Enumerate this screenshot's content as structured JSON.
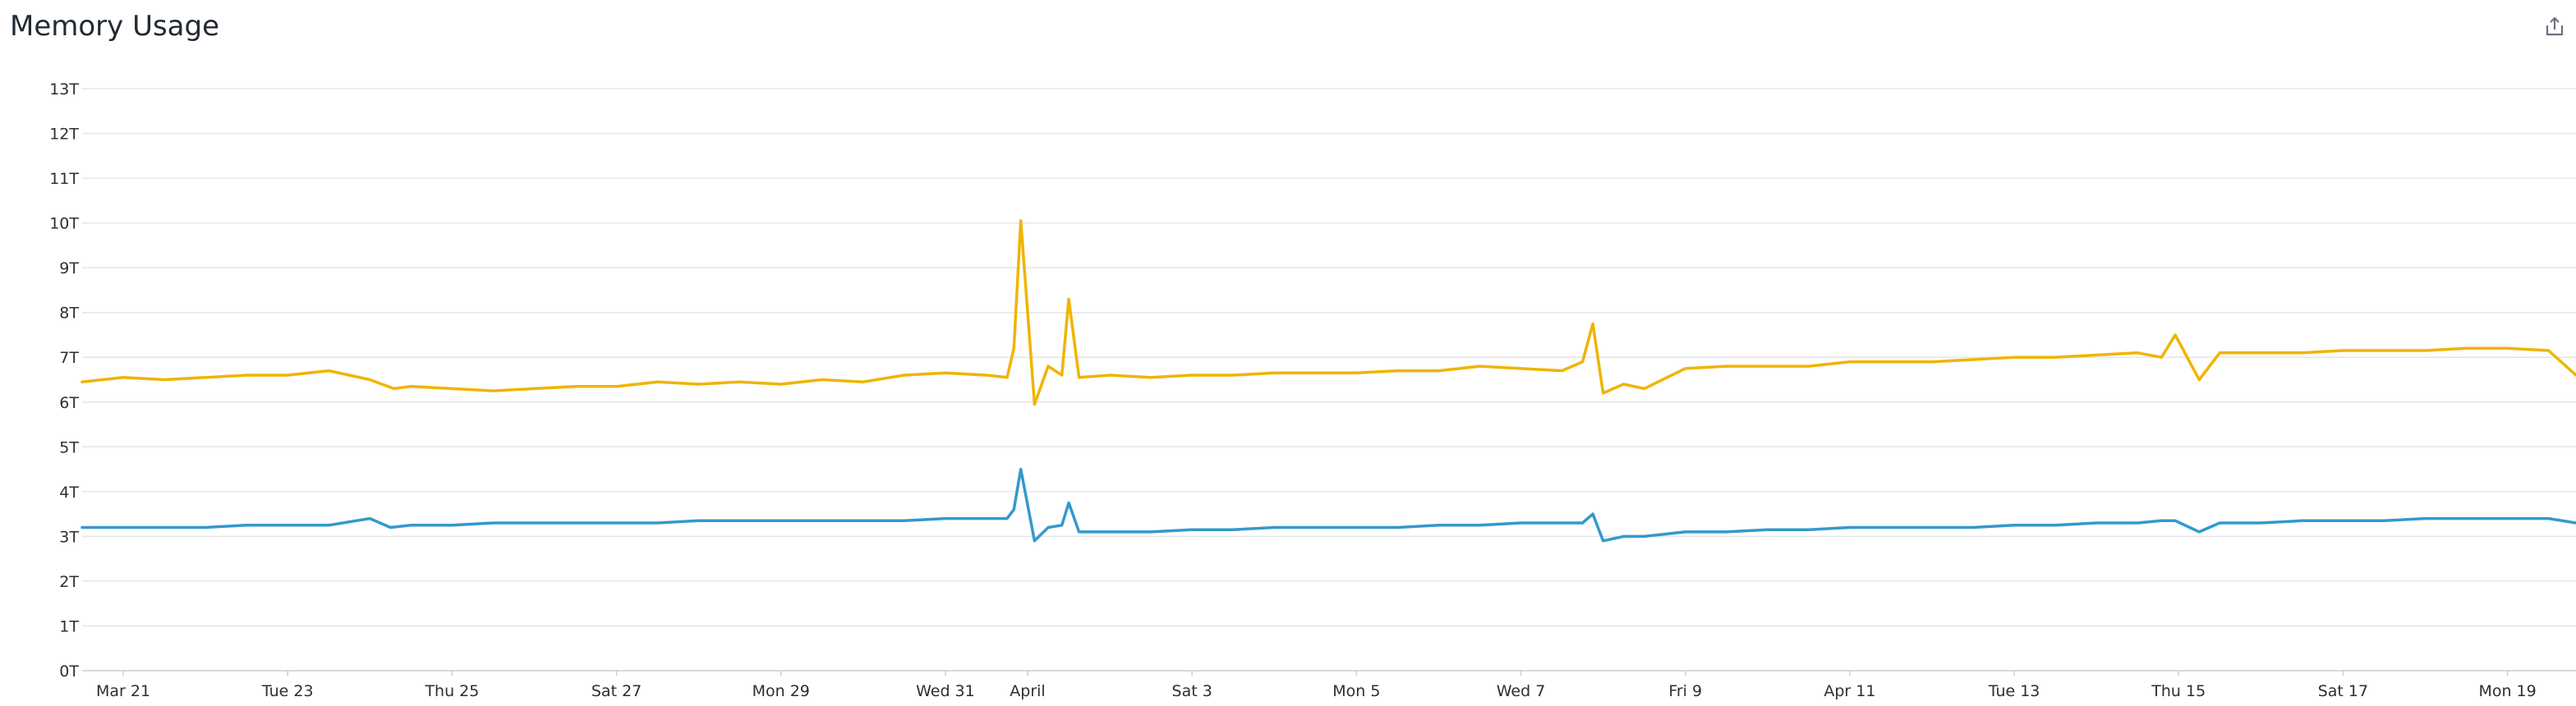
{
  "title": "Memory Usage",
  "icons": {
    "share": "share-icon"
  },
  "colors": {
    "series_top": "#f0b400",
    "series_bottom": "#3399cc",
    "grid": "#e4e6ea",
    "axis": "#c9cdd3"
  },
  "chart_data": {
    "type": "line",
    "title": "Memory Usage",
    "xlabel": "",
    "ylabel": "",
    "grid": true,
    "legend": "none",
    "unit": "T",
    "ylim": [
      0,
      13
    ],
    "yticks": [
      "0T",
      "1T",
      "2T",
      "3T",
      "4T",
      "5T",
      "6T",
      "7T",
      "8T",
      "9T",
      "10T",
      "11T",
      "12T",
      "13T"
    ],
    "xlim": [
      "2021-03-20T12:00",
      "2021-04-19T20:00"
    ],
    "xticks": [
      {
        "date": "2021-03-21",
        "label": "Mar 21"
      },
      {
        "date": "2021-03-23",
        "label": "Tue 23"
      },
      {
        "date": "2021-03-25",
        "label": "Thu 25"
      },
      {
        "date": "2021-03-27",
        "label": "Sat 27"
      },
      {
        "date": "2021-03-29",
        "label": "Mon 29"
      },
      {
        "date": "2021-03-31",
        "label": "Wed 31"
      },
      {
        "date": "2021-04-01",
        "label": "April"
      },
      {
        "date": "2021-04-03",
        "label": "Sat 3"
      },
      {
        "date": "2021-04-05",
        "label": "Mon 5"
      },
      {
        "date": "2021-04-07",
        "label": "Wed 7"
      },
      {
        "date": "2021-04-09",
        "label": "Fri 9"
      },
      {
        "date": "2021-04-11",
        "label": "Apr 11"
      },
      {
        "date": "2021-04-13",
        "label": "Tue 13"
      },
      {
        "date": "2021-04-15",
        "label": "Thu 15"
      },
      {
        "date": "2021-04-17",
        "label": "Sat 17"
      },
      {
        "date": "2021-04-19",
        "label": "Mon 19"
      }
    ],
    "series": [
      {
        "x": [
          "2021-03-20T12:00",
          "2021-03-21T00:00",
          "2021-03-21T12:00",
          "2021-03-22T00:00",
          "2021-03-22T12:00",
          "2021-03-23T00:00",
          "2021-03-23T12:00",
          "2021-03-24T00:00",
          "2021-03-24T07:00",
          "2021-03-24T12:00",
          "2021-03-25T00:00",
          "2021-03-25T12:00",
          "2021-03-26T00:00",
          "2021-03-26T12:00",
          "2021-03-27T00:00",
          "2021-03-27T12:00",
          "2021-03-28T00:00",
          "2021-03-28T12:00",
          "2021-03-29T00:00",
          "2021-03-29T12:00",
          "2021-03-30T00:00",
          "2021-03-30T12:00",
          "2021-03-31T00:00",
          "2021-03-31T12:00",
          "2021-03-31T18:00",
          "2021-03-31T20:00",
          "2021-03-31T22:00",
          "2021-04-01T02:00",
          "2021-04-01T06:00",
          "2021-04-01T10:00",
          "2021-04-01T12:00",
          "2021-04-01T15:00",
          "2021-04-02T00:00",
          "2021-04-02T12:00",
          "2021-04-03T00:00",
          "2021-04-03T12:00",
          "2021-04-04T00:00",
          "2021-04-04T12:00",
          "2021-04-05T00:00",
          "2021-04-05T12:00",
          "2021-04-06T00:00",
          "2021-04-06T12:00",
          "2021-04-07T00:00",
          "2021-04-07T12:00",
          "2021-04-07T18:00",
          "2021-04-07T21:00",
          "2021-04-08T00:00",
          "2021-04-08T06:00",
          "2021-04-08T12:00",
          "2021-04-09T00:00",
          "2021-04-09T12:00",
          "2021-04-10T00:00",
          "2021-04-10T12:00",
          "2021-04-11T00:00",
          "2021-04-11T12:00",
          "2021-04-12T00:00",
          "2021-04-12T12:00",
          "2021-04-13T00:00",
          "2021-04-13T12:00",
          "2021-04-14T00:00",
          "2021-04-14T12:00",
          "2021-04-14T19:00",
          "2021-04-14T23:00",
          "2021-04-15T06:00",
          "2021-04-15T12:00",
          "2021-04-16T00:00",
          "2021-04-16T12:00",
          "2021-04-17T00:00",
          "2021-04-17T12:00",
          "2021-04-18T00:00",
          "2021-04-18T12:00",
          "2021-04-19T00:00",
          "2021-04-19T12:00",
          "2021-04-19T20:00"
        ],
        "y": [
          6.45,
          6.55,
          6.5,
          6.55,
          6.6,
          6.6,
          6.7,
          6.5,
          6.3,
          6.35,
          6.3,
          6.25,
          6.3,
          6.35,
          6.35,
          6.45,
          6.4,
          6.45,
          6.4,
          6.5,
          6.45,
          6.6,
          6.65,
          6.6,
          6.55,
          7.2,
          10.05,
          5.95,
          6.8,
          6.6,
          8.3,
          6.55,
          6.6,
          6.55,
          6.6,
          6.6,
          6.65,
          6.65,
          6.65,
          6.7,
          6.7,
          6.8,
          6.75,
          6.7,
          6.9,
          7.75,
          6.2,
          6.4,
          6.3,
          6.75,
          6.8,
          6.8,
          6.8,
          6.9,
          6.9,
          6.9,
          6.95,
          7.0,
          7.0,
          7.05,
          7.1,
          7.0,
          7.5,
          6.5,
          7.1,
          7.1,
          7.1,
          7.15,
          7.15,
          7.15,
          7.2,
          7.2,
          7.15,
          6.6
        ]
      },
      {
        "x": [
          "2021-03-20T12:00",
          "2021-03-21T00:00",
          "2021-03-21T12:00",
          "2021-03-22T00:00",
          "2021-03-22T12:00",
          "2021-03-23T00:00",
          "2021-03-23T12:00",
          "2021-03-24T00:00",
          "2021-03-24T06:00",
          "2021-03-24T12:00",
          "2021-03-25T00:00",
          "2021-03-25T12:00",
          "2021-03-26T00:00",
          "2021-03-26T12:00",
          "2021-03-27T00:00",
          "2021-03-27T12:00",
          "2021-03-28T00:00",
          "2021-03-28T12:00",
          "2021-03-29T00:00",
          "2021-03-29T12:00",
          "2021-03-30T00:00",
          "2021-03-30T12:00",
          "2021-03-31T00:00",
          "2021-03-31T12:00",
          "2021-03-31T18:00",
          "2021-03-31T20:00",
          "2021-03-31T22:00",
          "2021-04-01T02:00",
          "2021-04-01T06:00",
          "2021-04-01T10:00",
          "2021-04-01T12:00",
          "2021-04-01T15:00",
          "2021-04-02T00:00",
          "2021-04-02T12:00",
          "2021-04-03T00:00",
          "2021-04-03T12:00",
          "2021-04-04T00:00",
          "2021-04-04T12:00",
          "2021-04-05T00:00",
          "2021-04-05T12:00",
          "2021-04-06T00:00",
          "2021-04-06T12:00",
          "2021-04-07T00:00",
          "2021-04-07T12:00",
          "2021-04-07T18:00",
          "2021-04-07T21:00",
          "2021-04-08T00:00",
          "2021-04-08T06:00",
          "2021-04-08T12:00",
          "2021-04-09T00:00",
          "2021-04-09T12:00",
          "2021-04-10T00:00",
          "2021-04-10T12:00",
          "2021-04-11T00:00",
          "2021-04-11T12:00",
          "2021-04-12T00:00",
          "2021-04-12T12:00",
          "2021-04-13T00:00",
          "2021-04-13T12:00",
          "2021-04-14T00:00",
          "2021-04-14T12:00",
          "2021-04-14T19:00",
          "2021-04-14T23:00",
          "2021-04-15T06:00",
          "2021-04-15T12:00",
          "2021-04-16T00:00",
          "2021-04-16T12:00",
          "2021-04-17T00:00",
          "2021-04-17T12:00",
          "2021-04-18T00:00",
          "2021-04-18T12:00",
          "2021-04-19T00:00",
          "2021-04-19T12:00",
          "2021-04-19T20:00"
        ],
        "y": [
          3.2,
          3.2,
          3.2,
          3.2,
          3.25,
          3.25,
          3.25,
          3.4,
          3.2,
          3.25,
          3.25,
          3.3,
          3.3,
          3.3,
          3.3,
          3.3,
          3.35,
          3.35,
          3.35,
          3.35,
          3.35,
          3.35,
          3.4,
          3.4,
          3.4,
          3.6,
          4.5,
          2.9,
          3.2,
          3.25,
          3.75,
          3.1,
          3.1,
          3.1,
          3.15,
          3.15,
          3.2,
          3.2,
          3.2,
          3.2,
          3.25,
          3.25,
          3.3,
          3.3,
          3.3,
          3.5,
          2.9,
          3.0,
          3.0,
          3.1,
          3.1,
          3.15,
          3.15,
          3.2,
          3.2,
          3.2,
          3.2,
          3.25,
          3.25,
          3.3,
          3.3,
          3.35,
          3.35,
          3.1,
          3.3,
          3.3,
          3.35,
          3.35,
          3.35,
          3.4,
          3.4,
          3.4,
          3.4,
          3.3
        ]
      }
    ]
  }
}
